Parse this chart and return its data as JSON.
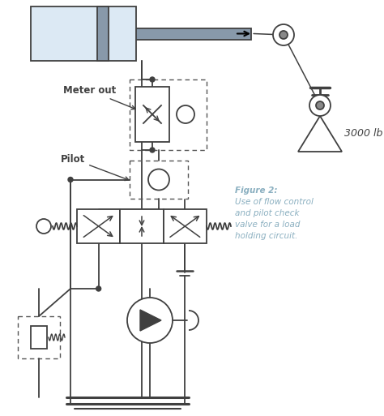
{
  "caption_line1": "Figure 2:",
  "caption_line2": "Use of flow control",
  "caption_line3": "and pilot check",
  "caption_line4": "valve for a load",
  "caption_line5": "holding circuit.",
  "caption_color": "#8aafc0",
  "weight_label": "3000 lb",
  "meter_out_label": "Meter out",
  "pilot_label": "Pilot",
  "bg_color": "#ffffff",
  "line_color": "#404040",
  "cylinder_fill": "#dce9f4",
  "rod_fill": "#8899aa",
  "fig_w": 4.74,
  "fig_h": 5.13,
  "dpi": 100
}
